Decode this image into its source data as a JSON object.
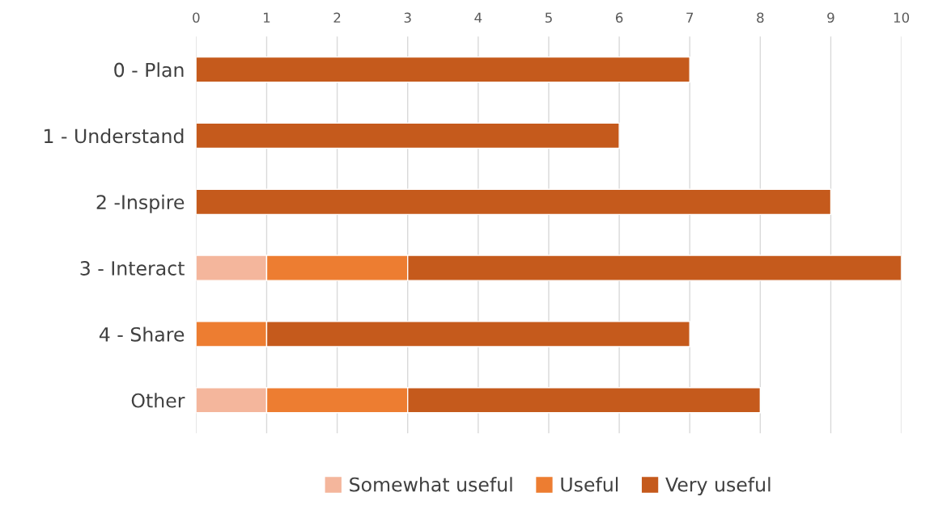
{
  "chart_data": {
    "type": "bar",
    "orientation": "horizontal",
    "stacked": true,
    "categories": [
      "0 - Plan",
      "1 - Understand",
      "2 -Inspire",
      "3 - Interact",
      "4 - Share",
      "Other"
    ],
    "series": [
      {
        "name": "Somewhat useful",
        "color": "#f4b69c",
        "values": [
          null,
          null,
          null,
          1,
          null,
          1
        ]
      },
      {
        "name": "Useful",
        "color": "#ed7d31",
        "values": [
          null,
          null,
          null,
          2,
          1,
          2
        ]
      },
      {
        "name": "Very useful",
        "color": "#c55a1c",
        "values": [
          7,
          6,
          9,
          7,
          6,
          5
        ]
      }
    ],
    "xlim": [
      0,
      10
    ],
    "xticks": [
      0,
      1,
      2,
      3,
      4,
      5,
      6,
      7,
      8,
      9,
      10
    ],
    "grid": "x",
    "legend": "bottom"
  }
}
